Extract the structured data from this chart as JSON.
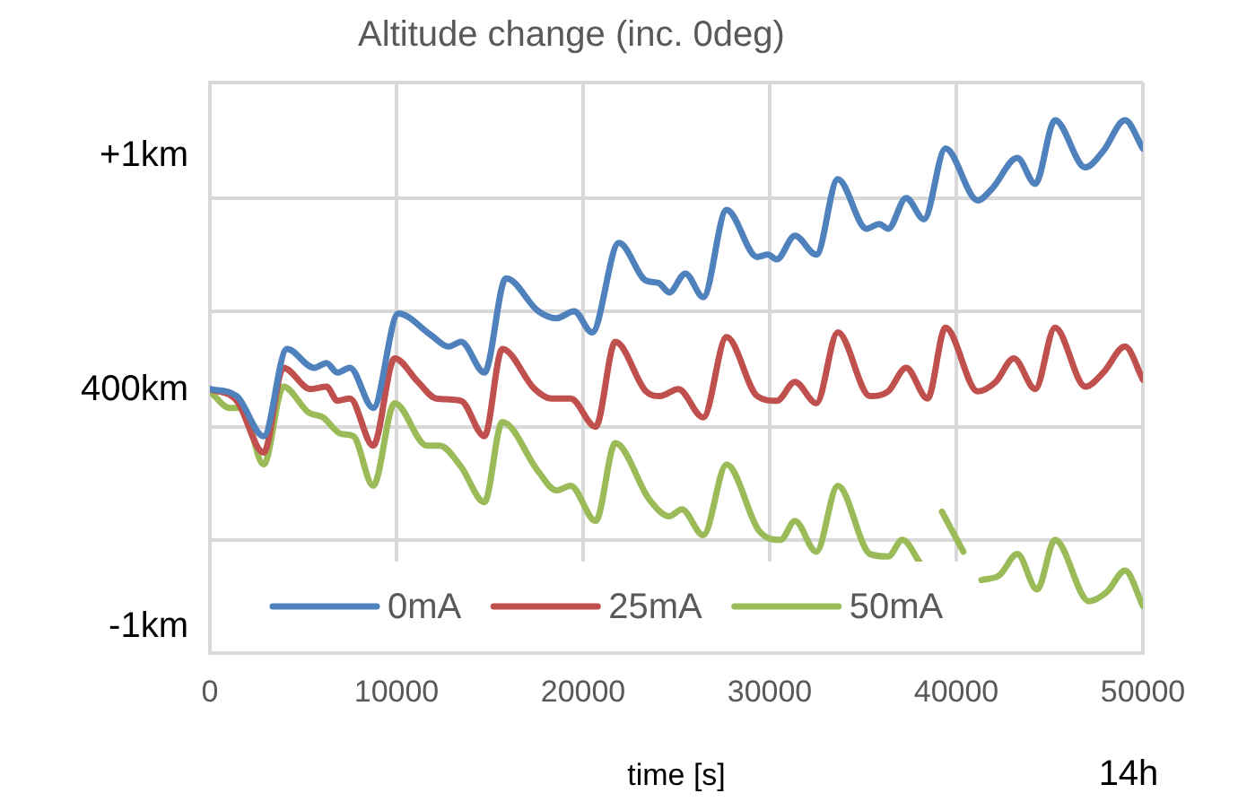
{
  "chart_data": {
    "type": "line",
    "title": "Altitude change (inc. 0deg)",
    "xlabel": "time [s]",
    "ylabel": "400km",
    "annotations": [
      "14h"
    ],
    "xlim": [
      0,
      50000
    ],
    "xticks": [
      0,
      10000,
      20000,
      30000,
      40000,
      50000
    ],
    "ylim": [
      -1.11,
      1.31
    ],
    "yticks": [
      {
        "value": 1.31,
        "label": null
      },
      {
        "value": 1,
        "label": "+1km"
      },
      {
        "value": 0.82,
        "label": null
      },
      {
        "value": 0.34,
        "label": null
      },
      {
        "value": -0.15,
        "label": null
      },
      {
        "value": -0.63,
        "label": null
      },
      {
        "value": -1,
        "label": "-1km"
      },
      {
        "value": -1.11,
        "label": null
      }
    ],
    "grid": true,
    "legend": "bottom",
    "marker": "none",
    "series": [
      {
        "name": "0mA",
        "color": "#4f81bd",
        "x": [
          0,
          1440,
          2880,
          4130,
          5580,
          6250,
          6830,
          7500,
          8750,
          10100,
          11830,
          12790,
          13460,
          14710,
          15870,
          17600,
          18560,
          19520,
          20480,
          21920,
          23370,
          24040,
          24620,
          25480,
          26440,
          27690,
          29330,
          29900,
          30380,
          31350,
          32500,
          33650,
          35190,
          35870,
          36350,
          37310,
          38270,
          39420,
          41150,
          41920,
          43270,
          44230,
          45290,
          46920,
          47880,
          49040,
          50000
        ],
        "values": [
          0.01,
          -0.02,
          -0.19,
          0.18,
          0.1,
          0.12,
          0.08,
          0.1,
          -0.07,
          0.33,
          0.24,
          0.19,
          0.21,
          0.08,
          0.48,
          0.34,
          0.31,
          0.34,
          0.25,
          0.63,
          0.47,
          0.46,
          0.42,
          0.5,
          0.4,
          0.77,
          0.57,
          0.58,
          0.56,
          0.66,
          0.58,
          0.9,
          0.69,
          0.71,
          0.69,
          0.82,
          0.73,
          1.03,
          0.81,
          0.86,
          0.99,
          0.88,
          1.15,
          0.95,
          1.02,
          1.15,
          1.03
        ]
      },
      {
        "name": "25mA",
        "color": "#c0504d",
        "x": [
          0,
          1440,
          2880,
          3940,
          5380,
          6250,
          6830,
          7500,
          8750,
          9900,
          11150,
          12120,
          13460,
          14710,
          15670,
          17400,
          18270,
          19330,
          20670,
          21730,
          23370,
          24130,
          25100,
          26440,
          27690,
          29330,
          30380,
          31350,
          32500,
          33650,
          35380,
          36350,
          37310,
          38460,
          39420,
          41150,
          42110,
          43080,
          44230,
          45290,
          46920,
          47880,
          49040,
          50000
        ],
        "values": [
          0.01,
          -0.04,
          -0.26,
          0.1,
          0.01,
          0.02,
          -0.04,
          -0.03,
          -0.23,
          0.14,
          0.04,
          -0.03,
          -0.04,
          -0.19,
          0.18,
          0.01,
          -0.03,
          -0.03,
          -0.15,
          0.21,
          0.0,
          -0.02,
          0.01,
          -0.11,
          0.23,
          -0.02,
          -0.04,
          0.04,
          -0.05,
          0.25,
          -0.02,
          0.0,
          0.1,
          -0.03,
          0.27,
          0.0,
          0.04,
          0.14,
          0.01,
          0.27,
          0.02,
          0.08,
          0.19,
          0.05
        ]
      },
      {
        "name": "50mA",
        "color": "#9bbb59",
        "x": [
          0,
          1060,
          1730,
          2880,
          3940,
          5290,
          6060,
          7020,
          7690,
          8750,
          9900,
          11630,
          12310,
          13460,
          14710,
          15670,
          17600,
          18560,
          19330,
          20670,
          21730,
          23560,
          24620,
          25290,
          26440,
          27690,
          29420,
          30580,
          31350,
          32500,
          33650,
          35380,
          36350,
          37110,
          38080,
          38560,
          39230,
          40380,
          40770,
          41350,
          42310,
          43270,
          44330,
          45290,
          47110,
          48080,
          49040,
          50000
        ],
        "values": [
          0.0,
          -0.07,
          -0.07,
          -0.31,
          0.02,
          -0.09,
          -0.11,
          -0.18,
          -0.19,
          -0.4,
          -0.05,
          -0.23,
          -0.23,
          -0.32,
          -0.47,
          -0.13,
          -0.34,
          -0.42,
          -0.4,
          -0.55,
          -0.22,
          -0.46,
          -0.53,
          -0.5,
          -0.61,
          -0.31,
          -0.59,
          -0.63,
          -0.55,
          -0.68,
          -0.4,
          -0.69,
          -0.7,
          -0.63,
          -0.73,
          null,
          -0.51,
          -0.68,
          null,
          -0.8,
          -0.78,
          -0.69,
          -0.84,
          -0.63,
          -0.89,
          -0.85,
          -0.76,
          -0.91
        ]
      }
    ]
  }
}
